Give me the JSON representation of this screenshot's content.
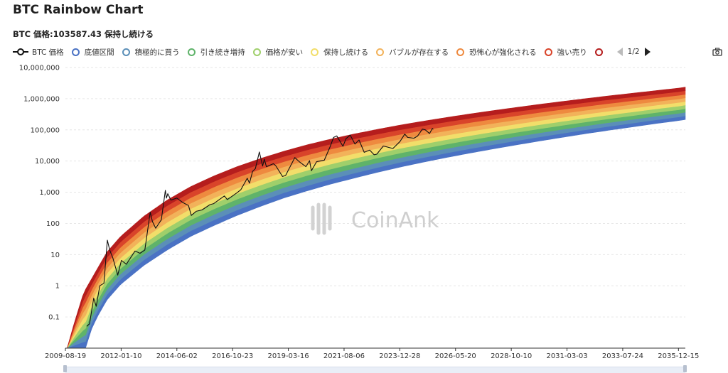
{
  "title": "BTC Rainbow Chart",
  "subtitle": "BTC 価格:103587.43 保持し続ける",
  "legend": {
    "items": [
      {
        "label": "BTC 価格",
        "color": "#111111",
        "kind": "line"
      },
      {
        "label": "底値区間",
        "color": "#4a72c4",
        "kind": "ring"
      },
      {
        "label": "積極的に買う",
        "color": "#5b8fb8",
        "kind": "ring"
      },
      {
        "label": "引き続き増持",
        "color": "#5fb36a",
        "kind": "ring"
      },
      {
        "label": "価格が安い",
        "color": "#9fcf6b",
        "kind": "ring"
      },
      {
        "label": "保持し続ける",
        "color": "#f2de6a",
        "kind": "ring"
      },
      {
        "label": "バブルが存在する",
        "color": "#f2b25a",
        "kind": "ring"
      },
      {
        "label": "恐怖心が強化される",
        "color": "#ee8a3f",
        "kind": "ring"
      },
      {
        "label": "強い売り",
        "color": "#d9442a",
        "kind": "ring"
      },
      {
        "label": "",
        "color": "#b51d1d",
        "kind": "ring"
      }
    ],
    "page": "1/2"
  },
  "watermark": "CoinAnk",
  "chart_data": {
    "type": "line",
    "title": "BTC Rainbow Chart",
    "y_scale": "log",
    "ylim": [
      0.01,
      10000000
    ],
    "xlim": [
      "2009-08-19",
      "2036-04-01"
    ],
    "y_ticks": [
      0.1,
      1,
      10,
      100,
      1000,
      10000,
      100000,
      1000000,
      10000000
    ],
    "y_tick_labels": [
      "0.1",
      "1",
      "10",
      "100",
      "1,000",
      "10,000",
      "100,000",
      "1,000,000",
      "10,000,000"
    ],
    "x_ticks": [
      "2009-08-19",
      "2012-01-10",
      "2014-06-02",
      "2016-10-23",
      "2019-03-16",
      "2021-08-06",
      "2023-12-28",
      "2026-05-20",
      "2028-10-10",
      "2031-03-03",
      "2033-07-24",
      "2035-12-15"
    ],
    "grid": true,
    "bands": {
      "colors": [
        "#4a72c4",
        "#5b8fb8",
        "#5fb36a",
        "#9fcf6b",
        "#f2de6a",
        "#f2b25a",
        "#ee8a3f",
        "#d9442a",
        "#b51d1d"
      ],
      "lower": [
        [
          "2010-07-01",
          0.01
        ],
        [
          "2010-10-01",
          0.04
        ],
        [
          "2011-01-01",
          0.1
        ],
        [
          "2011-06-01",
          0.35
        ],
        [
          "2012-01-01",
          1.1
        ],
        [
          "2013-01-01",
          4.5
        ],
        [
          "2014-01-01",
          14
        ],
        [
          "2015-01-01",
          38
        ],
        [
          "2016-01-01",
          85
        ],
        [
          "2017-01-01",
          180
        ],
        [
          "2018-01-01",
          350
        ],
        [
          "2019-01-01",
          650
        ],
        [
          "2020-01-01",
          1100
        ],
        [
          "2021-01-01",
          1800
        ],
        [
          "2022-01-01",
          2800
        ],
        [
          "2023-01-01",
          4300
        ],
        [
          "2024-01-01",
          6400
        ],
        [
          "2025-01-01",
          9200
        ],
        [
          "2026-01-01",
          13000
        ],
        [
          "2027-01-01",
          18000
        ],
        [
          "2028-01-01",
          24500
        ],
        [
          "2029-01-01",
          33000
        ],
        [
          "2030-01-01",
          44000
        ],
        [
          "2031-01-01",
          58000
        ],
        [
          "2032-01-01",
          76000
        ],
        [
          "2033-01-01",
          98000
        ],
        [
          "2034-01-01",
          125000
        ],
        [
          "2035-01-01",
          160000
        ],
        [
          "2036-01-01",
          200000
        ],
        [
          "2036-04-01",
          215000
        ]
      ],
      "upper": [
        [
          "2009-09-15",
          0.01
        ],
        [
          "2010-01-01",
          0.06
        ],
        [
          "2010-06-01",
          0.6
        ],
        [
          "2011-01-01",
          3.5
        ],
        [
          "2011-06-01",
          12
        ],
        [
          "2012-01-01",
          38
        ],
        [
          "2013-01-01",
          170
        ],
        [
          "2014-01-01",
          560
        ],
        [
          "2015-01-01",
          1500
        ],
        [
          "2016-01-01",
          3300
        ],
        [
          "2017-01-01",
          6600
        ],
        [
          "2018-01-01",
          12000
        ],
        [
          "2019-01-01",
          20500
        ],
        [
          "2020-01-01",
          33000
        ],
        [
          "2021-01-01",
          50000
        ],
        [
          "2022-01-01",
          73000
        ],
        [
          "2023-01-01",
          103000
        ],
        [
          "2024-01-01",
          142000
        ],
        [
          "2025-01-01",
          190000
        ],
        [
          "2026-01-01",
          250000
        ],
        [
          "2027-01-01",
          325000
        ],
        [
          "2028-01-01",
          415000
        ],
        [
          "2029-01-01",
          525000
        ],
        [
          "2030-01-01",
          660000
        ],
        [
          "2031-01-01",
          820000
        ],
        [
          "2032-01-01",
          1010000
        ],
        [
          "2033-01-01",
          1240000
        ],
        [
          "2034-01-01",
          1500000
        ],
        [
          "2035-01-01",
          1820000
        ],
        [
          "2036-01-01",
          2200000
        ],
        [
          "2036-04-01",
          2350000
        ]
      ]
    },
    "series": [
      {
        "name": "BTC 価格",
        "color": "#111111",
        "points": [
          [
            "2010-07-18",
            0.05
          ],
          [
            "2010-09-01",
            0.06
          ],
          [
            "2010-11-06",
            0.4
          ],
          [
            "2010-12-15",
            0.22
          ],
          [
            "2011-02-10",
            1.0
          ],
          [
            "2011-04-15",
            1.2
          ],
          [
            "2011-06-08",
            29
          ],
          [
            "2011-07-15",
            14
          ],
          [
            "2011-09-01",
            8
          ],
          [
            "2011-11-18",
            2.2
          ],
          [
            "2012-01-15",
            6.5
          ],
          [
            "2012-04-01",
            4.9
          ],
          [
            "2012-08-15",
            13
          ],
          [
            "2012-11-01",
            11
          ],
          [
            "2013-01-15",
            14
          ],
          [
            "2013-04-10",
            230
          ],
          [
            "2013-05-15",
            115
          ],
          [
            "2013-07-05",
            70
          ],
          [
            "2013-10-01",
            130
          ],
          [
            "2013-12-04",
            1150
          ],
          [
            "2013-12-20",
            650
          ],
          [
            "2014-01-10",
            900
          ],
          [
            "2014-03-01",
            560
          ],
          [
            "2014-06-01",
            650
          ],
          [
            "2014-09-01",
            470
          ],
          [
            "2014-12-01",
            375
          ],
          [
            "2015-01-14",
            180
          ],
          [
            "2015-04-01",
            245
          ],
          [
            "2015-07-01",
            270
          ],
          [
            "2015-11-04",
            400
          ],
          [
            "2016-01-01",
            430
          ],
          [
            "2016-06-16",
            760
          ],
          [
            "2016-08-01",
            580
          ],
          [
            "2016-12-31",
            960
          ],
          [
            "2017-03-01",
            1200
          ],
          [
            "2017-06-10",
            2800
          ],
          [
            "2017-07-15",
            1950
          ],
          [
            "2017-09-01",
            4700
          ],
          [
            "2017-10-15",
            5700
          ],
          [
            "2017-12-17",
            19500
          ],
          [
            "2018-02-06",
            6900
          ],
          [
            "2018-03-05",
            11500
          ],
          [
            "2018-04-06",
            6600
          ],
          [
            "2018-07-25",
            8200
          ],
          [
            "2018-09-01",
            7000
          ],
          [
            "2018-12-15",
            3200
          ],
          [
            "2019-02-01",
            3450
          ],
          [
            "2019-06-26",
            12900
          ],
          [
            "2019-09-01",
            9600
          ],
          [
            "2019-12-17",
            6600
          ],
          [
            "2020-02-12",
            10300
          ],
          [
            "2020-03-12",
            4900
          ],
          [
            "2020-06-01",
            9500
          ],
          [
            "2020-10-01",
            10700
          ],
          [
            "2020-12-31",
            29000
          ],
          [
            "2021-02-21",
            57000
          ],
          [
            "2021-04-14",
            64000
          ],
          [
            "2021-07-20",
            29800
          ],
          [
            "2021-09-06",
            52000
          ],
          [
            "2021-11-10",
            68000
          ],
          [
            "2022-01-24",
            35000
          ],
          [
            "2022-03-29",
            47500
          ],
          [
            "2022-06-18",
            19000
          ],
          [
            "2022-09-12",
            22400
          ],
          [
            "2022-11-21",
            15800
          ],
          [
            "2023-01-01",
            16600
          ],
          [
            "2023-04-14",
            30400
          ],
          [
            "2023-09-11",
            25200
          ],
          [
            "2023-12-31",
            42200
          ],
          [
            "2024-03-14",
            73000
          ],
          [
            "2024-05-01",
            57000
          ],
          [
            "2024-08-05",
            54000
          ],
          [
            "2024-10-01",
            63000
          ],
          [
            "2024-12-17",
            106000
          ],
          [
            "2025-02-01",
            100000
          ],
          [
            "2025-04-08",
            76500
          ],
          [
            "2025-05-22",
            111000
          ],
          [
            "2025-06-05",
            103587.43
          ]
        ]
      }
    ],
    "current_price_label": "BTC 価格:103587.43",
    "current_zone": "保持し続ける"
  }
}
